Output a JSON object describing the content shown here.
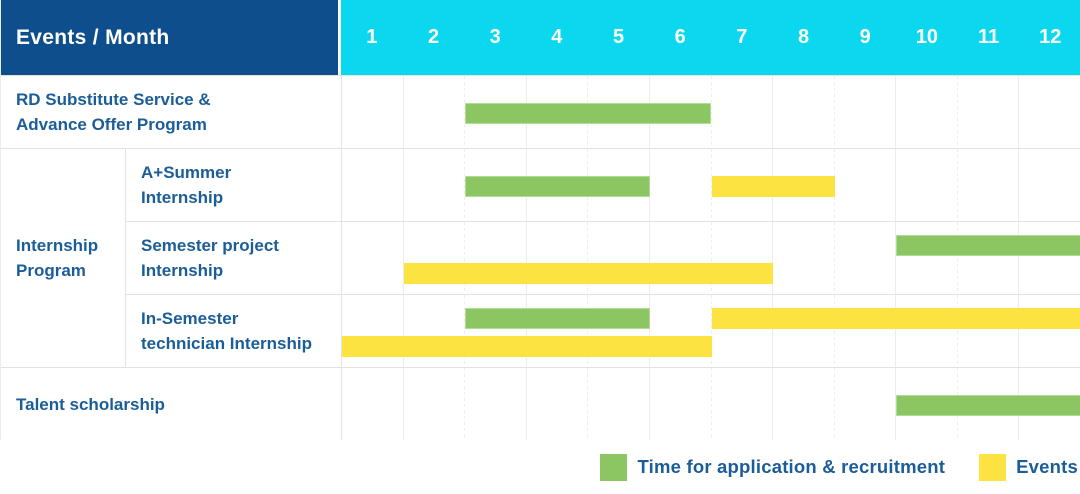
{
  "colors": {
    "header_bg": "#0e4e8c",
    "months_bg": "#0bd8ee",
    "label_text": "#1b5d98",
    "bar_green": "#8cc663",
    "bar_yellow": "#fde342",
    "grid_line": "#ececec"
  },
  "header": {
    "corner_label": "Events / Month",
    "months": [
      "1",
      "2",
      "3",
      "4",
      "5",
      "6",
      "7",
      "8",
      "9",
      "10",
      "11",
      "12"
    ]
  },
  "legend": {
    "items": [
      {
        "label": "Time for application & recruitment",
        "color_key": "green"
      },
      {
        "label": "Events",
        "color_key": "yellow"
      }
    ]
  },
  "chart_data": {
    "type": "gantt",
    "x_unit": "month",
    "x_range": [
      1,
      12
    ],
    "series_legend": {
      "green": "Time for application & recruitment",
      "yellow": "Events"
    },
    "row_groups": [
      {
        "label": "Internship\nProgram",
        "row_indexes": [
          1,
          2,
          3
        ]
      }
    ],
    "rows": [
      {
        "label": "RD Substitute Service &\nAdvance Offer Program",
        "group": null,
        "bars": [
          {
            "series": "Time for application & recruitment",
            "color_key": "green",
            "start_month": 3,
            "end_month": 6,
            "line": "single"
          }
        ]
      },
      {
        "label": "A+Summer\nInternship",
        "group": "Internship Program",
        "bars": [
          {
            "series": "Time for application & recruitment",
            "color_key": "green",
            "start_month": 3,
            "end_month": 5,
            "line": "single"
          },
          {
            "series": "Events",
            "color_key": "yellow",
            "start_month": 7,
            "end_month": 8,
            "line": "single"
          }
        ]
      },
      {
        "label": "Semester project\nInternship",
        "group": "Internship Program",
        "bars": [
          {
            "series": "Time for application & recruitment",
            "color_key": "green",
            "start_month": 10,
            "end_month": 12,
            "line": "top"
          },
          {
            "series": "Events",
            "color_key": "yellow",
            "start_month": 2,
            "end_month": 7,
            "line": "bottom"
          }
        ]
      },
      {
        "label": "In-Semester\ntechnician Internship",
        "group": "Internship Program",
        "bars": [
          {
            "series": "Time for application & recruitment",
            "color_key": "green",
            "start_month": 3,
            "end_month": 5,
            "line": "top"
          },
          {
            "series": "Events",
            "color_key": "yellow",
            "start_month": 7,
            "end_month": 12,
            "line": "top"
          },
          {
            "series": "Events",
            "color_key": "yellow",
            "start_month": 1,
            "end_month": 6,
            "line": "bottom"
          }
        ]
      },
      {
        "label": "Talent scholarship",
        "group": null,
        "bars": [
          {
            "series": "Time for application & recruitment",
            "color_key": "green",
            "start_month": 10,
            "end_month": 12,
            "line": "single"
          }
        ]
      }
    ]
  }
}
